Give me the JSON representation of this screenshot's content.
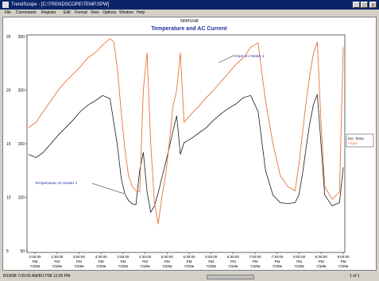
{
  "window": {
    "title": "TrendScope - [C:\\TRENDSCOPE\\TEMP.SPW]",
    "buttons": [
      "_",
      "□",
      "x"
    ]
  },
  "menu": [
    "File",
    "Commands",
    "Register",
    "Edit",
    "Format",
    "View",
    "Options",
    "Window",
    "Help"
  ],
  "chart_window_title": "SINH1648",
  "status": {
    "text": "8/18/98 7:09:00 AM/8/17/98 12:00 PM",
    "page": "1 of 1"
  },
  "colors": {
    "temperature": "#1a1a1a",
    "amps": "#e8733a",
    "title": "#2030a0",
    "annotation": "#2030a0"
  },
  "chart_data": {
    "type": "line",
    "title": "Temperature and AC Current",
    "xlabel": "",
    "ylabel": "",
    "y_left_ticks": [
      "250",
      "200",
      "150",
      "100",
      "50"
    ],
    "y_right_ticks": [
      "25",
      "20",
      "15",
      "10",
      "5"
    ],
    "ylim_amps": [
      5,
      25
    ],
    "ylim_temp": [
      50,
      250
    ],
    "x_ticks": [
      {
        "time": "2:00:00",
        "ampm": "PM",
        "date": "7/3/96"
      },
      {
        "time": "2:30:00",
        "ampm": "PM",
        "date": "7/3/96"
      },
      {
        "time": "3:00:00",
        "ampm": "PM",
        "date": "7/3/96"
      },
      {
        "time": "3:30:00",
        "ampm": "PM",
        "date": "7/3/96"
      },
      {
        "time": "4:00:00",
        "ampm": "PM",
        "date": "7/3/96"
      },
      {
        "time": "4:30:00",
        "ampm": "PM",
        "date": "7/3/96"
      },
      {
        "time": "5:00:00",
        "ampm": "PM",
        "date": "7/3/96"
      },
      {
        "time": "5:30:00",
        "ampm": "PM",
        "date": "7/3/96"
      },
      {
        "time": "6:00:00",
        "ampm": "PM",
        "date": "7/3/96"
      },
      {
        "time": "6:30:00",
        "ampm": "PM",
        "date": "7/3/96"
      },
      {
        "time": "7:00:00",
        "ampm": "PM",
        "date": "7/3/96"
      },
      {
        "time": "7:30:00",
        "ampm": "PM",
        "date": "7/3/96"
      },
      {
        "time": "8:00:00",
        "ampm": "PM",
        "date": "7/3/96"
      },
      {
        "time": "8:30:00",
        "ampm": "PM",
        "date": "7/3/96"
      },
      {
        "time": "9:00:00",
        "ampm": "PM",
        "date": "7/3/96"
      }
    ],
    "legend": [
      "Ext. Temp",
      "Amps"
    ],
    "legend_position": "right",
    "annotations": [
      "Amps on Heater 1",
      "Temperature on Heater 1"
    ],
    "grid": false,
    "series": [
      {
        "name": "Ext. Temp",
        "x_minutes": [
          0,
          10,
          20,
          30,
          40,
          50,
          60,
          70,
          80,
          90,
          100,
          110,
          120,
          125,
          130,
          135,
          140,
          145,
          150,
          155,
          160,
          165,
          170,
          175,
          180,
          185,
          190,
          195,
          200,
          205,
          210,
          220,
          230,
          240,
          250,
          260,
          270,
          280,
          290,
          300,
          310,
          320,
          330,
          340,
          350,
          360,
          365,
          370,
          375,
          380,
          385,
          390,
          395,
          400,
          410,
          420,
          425
        ],
        "values": [
          140,
          137,
          142,
          150,
          158,
          165,
          172,
          180,
          186,
          190,
          195,
          192,
          148,
          118,
          103,
          97,
          94,
          93,
          125,
          142,
          105,
          86,
          92,
          104,
          118,
          132,
          146,
          162,
          176,
          140,
          151,
          155,
          160,
          165,
          172,
          178,
          183,
          187,
          193,
          195,
          180,
          125,
          102,
          95,
          94,
          95,
          102,
          122,
          147,
          170,
          187,
          196,
          150,
          102,
          92,
          95,
          128
        ]
      },
      {
        "name": "Amps",
        "x_minutes": [
          0,
          10,
          20,
          30,
          40,
          50,
          60,
          70,
          80,
          90,
          100,
          110,
          115,
          120,
          125,
          130,
          135,
          140,
          145,
          150,
          155,
          160,
          165,
          170,
          175,
          180,
          185,
          190,
          195,
          200,
          205,
          210,
          220,
          230,
          240,
          250,
          260,
          270,
          280,
          290,
          300,
          310,
          320,
          330,
          340,
          350,
          360,
          365,
          370,
          375,
          380,
          385,
          390,
          395,
          400,
          410,
          420,
          425
        ],
        "values": [
          16.5,
          17,
          18,
          19,
          20,
          20.8,
          21.5,
          22.2,
          23,
          23.5,
          24.2,
          24.8,
          24.5,
          22,
          18,
          14.5,
          12,
          11,
          10.6,
          10.5,
          20,
          23.5,
          15,
          9.5,
          7.5,
          10,
          12,
          15,
          18.5,
          20,
          23.5,
          17,
          17.8,
          18.5,
          19.3,
          20,
          20.8,
          21.6,
          22.4,
          23,
          24,
          24.4,
          19,
          15,
          12,
          11,
          10.6,
          13,
          16,
          19,
          21.5,
          23.5,
          24.5,
          17,
          11,
          9.8,
          10.5,
          24
        ]
      }
    ]
  }
}
